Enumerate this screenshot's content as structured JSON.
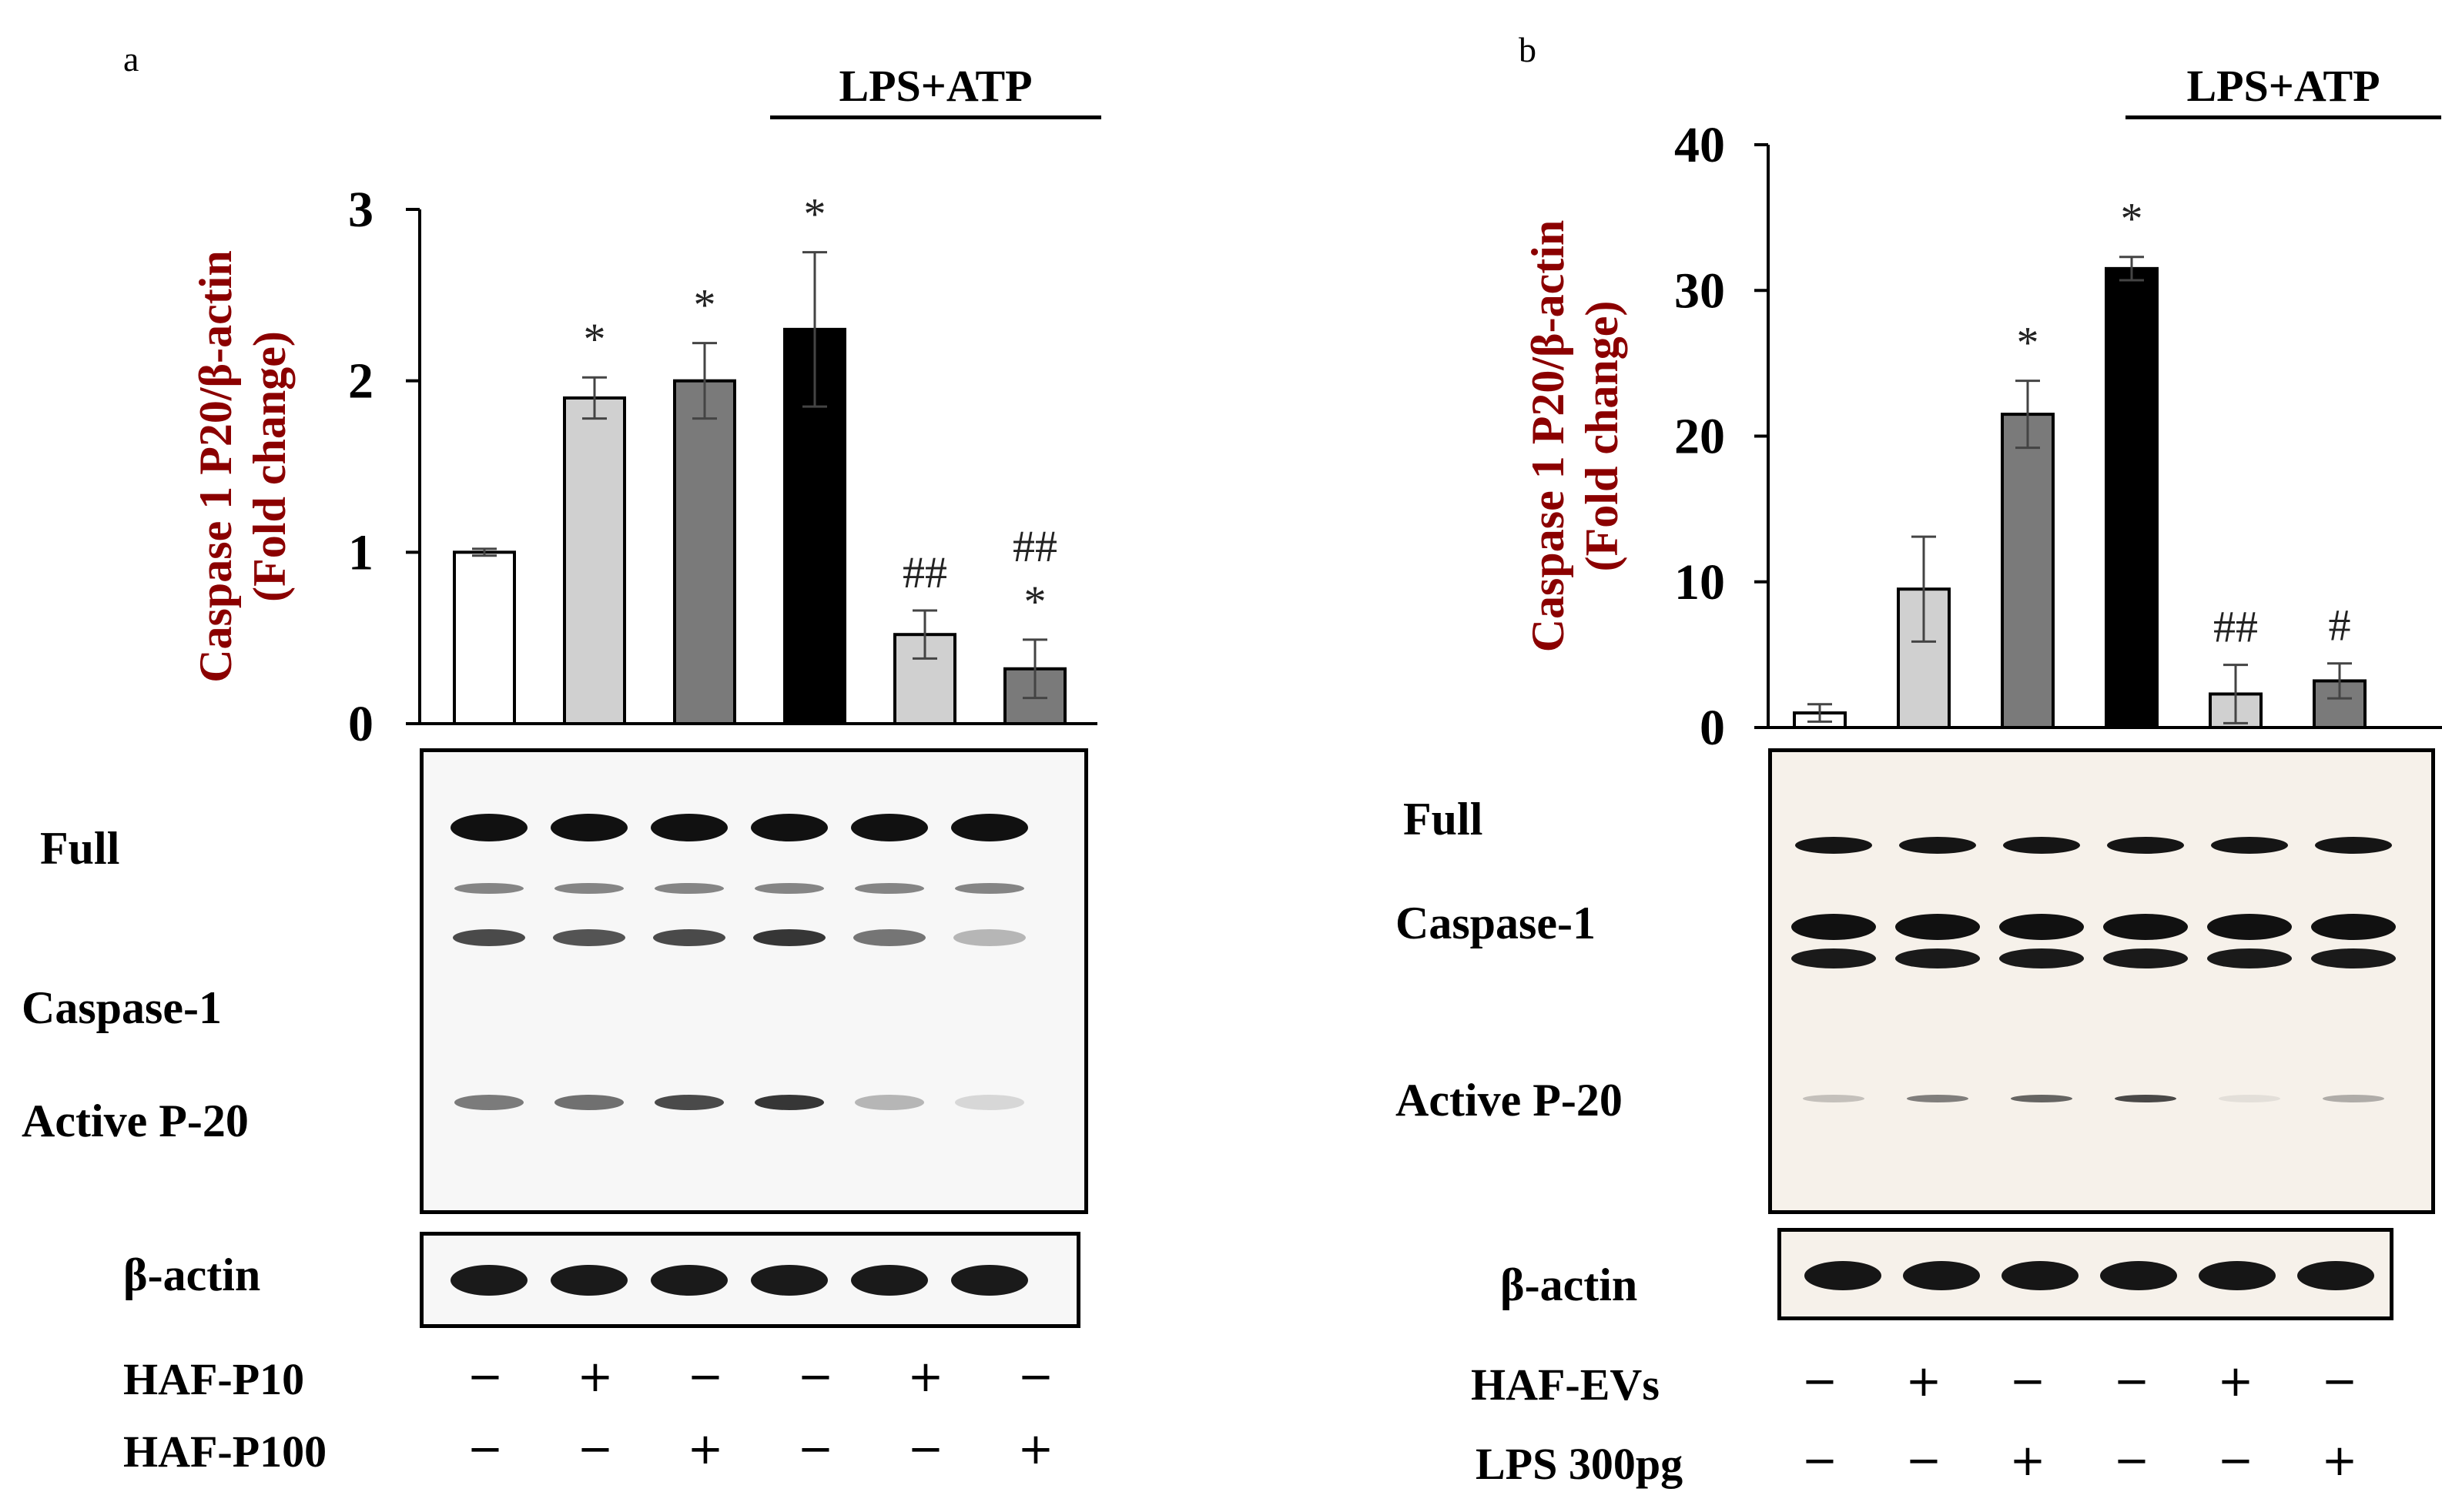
{
  "panels": [
    {
      "letter": "a",
      "bracket_label": "LPS+ATP",
      "chart_data": {
        "type": "bar",
        "ylabel_line1": "Caspase 1 P20/β-actin",
        "ylabel_line2": "(Fold change)",
        "ylim": [
          0,
          3
        ],
        "yticks": [
          "0",
          "1",
          "2",
          "3"
        ],
        "values": [
          1.0,
          1.9,
          2.0,
          2.3,
          0.52,
          0.32
        ],
        "errors": [
          0.02,
          0.12,
          0.22,
          0.45,
          0.14,
          0.17
        ],
        "bar_colors": [
          "#ffffff",
          "#d0d0d0",
          "#7a7a7a",
          "#000000",
          "#d0d0d0",
          "#7a7a7a"
        ],
        "annotations": [
          [],
          [
            "*"
          ],
          [
            "*"
          ],
          [
            "*"
          ],
          [
            "##"
          ],
          [
            "##",
            "*"
          ]
        ]
      },
      "blot_labels": {
        "full": "Full",
        "caspase": "Caspase-1",
        "active": "Active P-20",
        "actin": "β-actin"
      },
      "conditions": [
        {
          "label": "HAF-P10",
          "signs": [
            "−",
            "+",
            "−",
            "−",
            "+",
            "−"
          ]
        },
        {
          "label": "HAF-P100",
          "signs": [
            "−",
            "−",
            "+",
            "−",
            "−",
            "+"
          ]
        }
      ]
    },
    {
      "letter": "b",
      "bracket_label": "LPS+ATP",
      "chart_data": {
        "type": "bar",
        "ylabel_line1": "Caspase 1 P20/β-actin",
        "ylabel_line2": "(Fold change)",
        "ylim": [
          0,
          40
        ],
        "yticks": [
          "0",
          "10",
          "20",
          "30",
          "40"
        ],
        "values": [
          1.0,
          9.5,
          21.5,
          31.5,
          2.3,
          3.2
        ],
        "errors": [
          0.6,
          3.6,
          2.3,
          0.8,
          2.0,
          1.2
        ],
        "bar_colors": [
          "#ffffff",
          "#d0d0d0",
          "#7a7a7a",
          "#000000",
          "#d0d0d0",
          "#7a7a7a"
        ],
        "annotations": [
          [],
          [],
          [
            "*"
          ],
          [
            "*"
          ],
          [
            "##"
          ],
          [
            "#"
          ]
        ]
      },
      "blot_labels": {
        "full": "Full",
        "caspase": "Caspase-1",
        "active": "Active P-20",
        "actin": "β-actin"
      },
      "conditions": [
        {
          "label": "HAF-EVs",
          "signs": [
            "−",
            "+",
            "−",
            "−",
            "+",
            "−"
          ]
        },
        {
          "label": "LPS 300pg",
          "signs": [
            "−",
            "−",
            "+",
            "−",
            "−",
            "+"
          ]
        }
      ]
    }
  ]
}
